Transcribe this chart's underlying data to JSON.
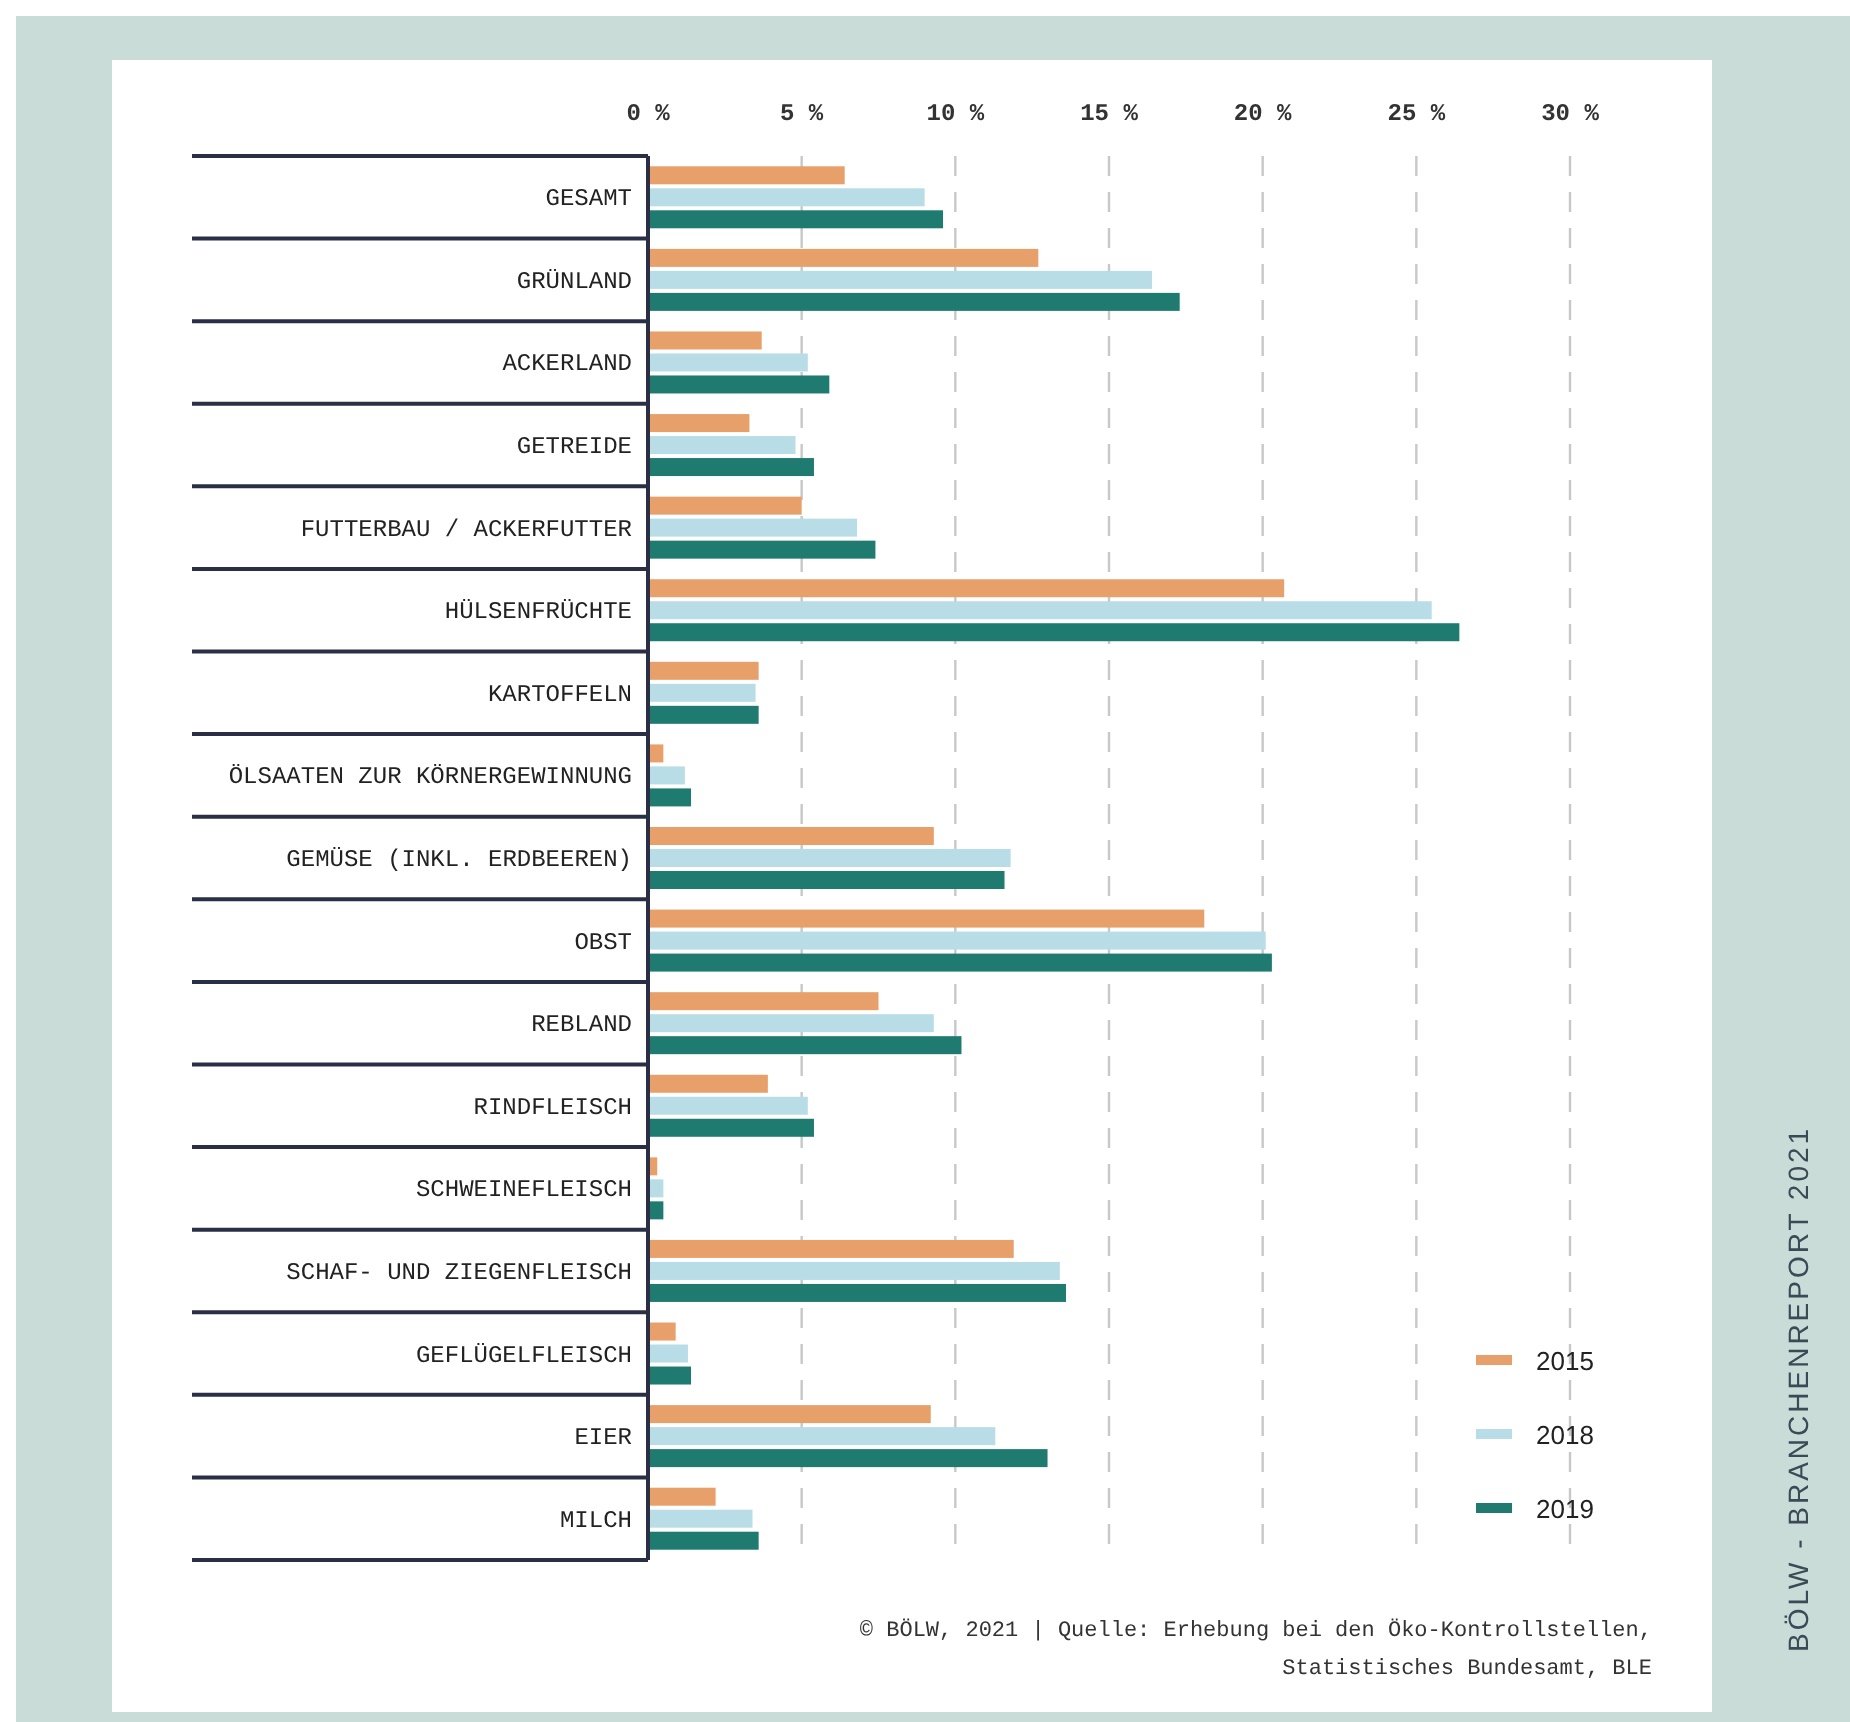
{
  "chart_data": {
    "type": "bar",
    "orientation": "horizontal",
    "categories": [
      "GESAMT",
      "GRÜNLAND",
      "ACKERLAND",
      "GETREIDE",
      "FUTTERBAU / ACKERFUTTER",
      "HÜLSENFRÜCHTE",
      "KARTOFFELN",
      "ÖLSAATEN ZUR KÖRNERGEWINNUNG",
      "GEMÜSE (INKL. ERDBEEREN)",
      "OBST",
      "REBLAND",
      "RINDFLEISCH",
      "SCHWEINEFLEISCH",
      "SCHAF- UND ZIEGENFLEISCH",
      "GEFLÜGELFLEISCH",
      "EIER",
      "MILCH"
    ],
    "series": [
      {
        "name": "2015",
        "color": "#e8a06a",
        "values": [
          6.4,
          12.7,
          3.7,
          3.3,
          5.0,
          20.7,
          3.6,
          0.5,
          9.3,
          18.1,
          7.5,
          3.9,
          0.3,
          11.9,
          0.9,
          9.2,
          2.2
        ]
      },
      {
        "name": "2018",
        "color": "#b9dde6",
        "values": [
          9.0,
          16.4,
          5.2,
          4.8,
          6.8,
          25.5,
          3.5,
          1.2,
          11.8,
          20.1,
          9.3,
          5.2,
          0.5,
          13.4,
          1.3,
          11.3,
          3.4
        ]
      },
      {
        "name": "2019",
        "color": "#1f7a70",
        "values": [
          9.6,
          17.3,
          5.9,
          5.4,
          7.4,
          26.4,
          3.6,
          1.4,
          11.6,
          20.3,
          10.2,
          5.4,
          0.5,
          13.6,
          1.4,
          13.0,
          3.6
        ]
      }
    ],
    "xlim": [
      0,
      30
    ],
    "xticks": [
      {
        "value": 0,
        "label": "0 %"
      },
      {
        "value": 5,
        "label": "5 %"
      },
      {
        "value": 10,
        "label": "10 %"
      },
      {
        "value": 15,
        "label": "15 %"
      },
      {
        "value": 20,
        "label": "20 %"
      },
      {
        "value": 25,
        "label": "25 %"
      },
      {
        "value": 30,
        "label": "30 %"
      }
    ],
    "grid": "x",
    "legend": "bottom right",
    "annotations": [
      "© BÖLW, 2021 | Quelle: Erhebung bei den Öko-Kontrollstellen,",
      "Statistisches Bundesamt, BLE",
      "BÖLW - BRANCHENREPORT 2021"
    ]
  }
}
